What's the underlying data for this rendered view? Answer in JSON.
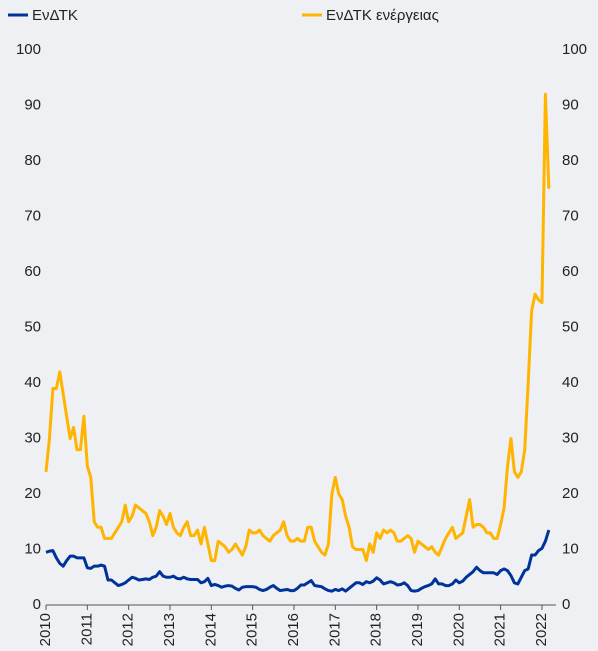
{
  "chart_data": {
    "type": "line",
    "categories": [
      "2010",
      null,
      null,
      null,
      null,
      null,
      null,
      null,
      null,
      null,
      null,
      null,
      "2011",
      null,
      null,
      null,
      null,
      null,
      null,
      null,
      null,
      null,
      null,
      null,
      "2012",
      null,
      null,
      null,
      null,
      null,
      null,
      null,
      null,
      null,
      null,
      null,
      "2013",
      null,
      null,
      null,
      null,
      null,
      null,
      null,
      null,
      null,
      null,
      null,
      "2014",
      null,
      null,
      null,
      null,
      null,
      null,
      null,
      null,
      null,
      null,
      null,
      "2015",
      null,
      null,
      null,
      null,
      null,
      null,
      null,
      null,
      null,
      null,
      null,
      "2016",
      null,
      null,
      null,
      null,
      null,
      null,
      null,
      null,
      null,
      null,
      null,
      "2017",
      null,
      null,
      null,
      null,
      null,
      null,
      null,
      null,
      null,
      null,
      null,
      "2018",
      null,
      null,
      null,
      null,
      null,
      null,
      null,
      null,
      null,
      null,
      null,
      "2019",
      null,
      null,
      null,
      null,
      null,
      null,
      null,
      null,
      null,
      null,
      null,
      "2020",
      null,
      null,
      null,
      null,
      null,
      null,
      null,
      null,
      null,
      null,
      null,
      "2021",
      null,
      null,
      null,
      null,
      null,
      null,
      null,
      null,
      null,
      null,
      null,
      "2022",
      null,
      null
    ],
    "series": [
      {
        "name": "ΕνΔΤΚ",
        "color": "#003399",
        "values": [
          9.5,
          9.7,
          9.8,
          8.5,
          7.5,
          7,
          8,
          8.8,
          8.8,
          8.5,
          8.5,
          8.5,
          6.7,
          6.6,
          7,
          7,
          7.2,
          7,
          4.5,
          4.5,
          4,
          3.5,
          3.7,
          4,
          4.5,
          5,
          4.8,
          4.5,
          4.6,
          4.7,
          4.6,
          5,
          5.2,
          6,
          5.2,
          5,
          5,
          5.2,
          4.8,
          4.7,
          5,
          4.7,
          4.6,
          4.6,
          4.6,
          4,
          4.2,
          4.8,
          3.5,
          3.7,
          3.5,
          3.2,
          3.4,
          3.5,
          3.4,
          3,
          2.7,
          3.2,
          3.3,
          3.3,
          3.3,
          3.2,
          2.8,
          2.6,
          2.8,
          3.2,
          3.5,
          3,
          2.6,
          2.7,
          2.8,
          2.6,
          2.6,
          3,
          3.6,
          3.6,
          4,
          4.4,
          3.5,
          3.4,
          3.3,
          2.9,
          2.6,
          2.5,
          2.8,
          2.6,
          2.9,
          2.5,
          3,
          3.5,
          4,
          4,
          3.7,
          4.2,
          4,
          4.3,
          4.9,
          4.5,
          3.8,
          4,
          4.2,
          4,
          3.6,
          3.7,
          4,
          3.5,
          2.6,
          2.5,
          2.6,
          3,
          3.3,
          3.5,
          3.8,
          4.7,
          3.8,
          3.8,
          3.5,
          3.5,
          3.8,
          4.5,
          4,
          4.3,
          5,
          5.5,
          6,
          6.8,
          6.2,
          5.8,
          5.8,
          5.8,
          5.8,
          5.5,
          6.2,
          6.5,
          6.2,
          5.3,
          4,
          3.8,
          5,
          6.2,
          6.5,
          9,
          9,
          9.8,
          10.2,
          11.5,
          13.5
        ]
      },
      {
        "name": "ΕνΔΤΚ ενέργειας",
        "color": "#ffb400",
        "values": [
          24,
          30,
          39,
          39,
          42,
          38,
          34,
          30,
          32,
          28,
          28,
          34,
          25,
          23,
          15,
          14,
          14,
          12,
          12,
          12,
          13,
          14,
          15,
          18,
          15,
          16,
          18,
          17.5,
          17,
          16.5,
          15,
          12.5,
          14,
          17,
          16,
          14.5,
          16.5,
          14,
          13,
          12.5,
          14,
          15,
          12.5,
          12.5,
          13.5,
          11,
          14,
          11,
          8,
          8,
          11.5,
          11,
          10.5,
          9.5,
          10,
          11,
          10,
          9,
          10.5,
          13.5,
          13,
          13,
          13.5,
          12.5,
          12,
          11.5,
          12.5,
          13,
          13.5,
          15,
          12.5,
          11.5,
          11.5,
          12,
          11.5,
          11.5,
          14,
          14,
          11.5,
          10.5,
          9.5,
          9,
          11,
          20,
          23,
          20,
          19,
          16,
          14,
          10.5,
          10,
          10,
          10,
          8,
          11,
          9.5,
          13,
          12,
          13.5,
          13,
          13.5,
          13,
          11.5,
          11.5,
          12,
          12.5,
          12,
          9.5,
          11.5,
          11,
          10.5,
          10,
          10.5,
          9.5,
          9,
          10.5,
          12,
          13,
          14,
          12,
          12.5,
          13,
          16,
          19,
          14,
          14.5,
          14.5,
          14,
          13,
          13,
          12,
          12,
          14.5,
          17.5,
          25,
          30,
          24,
          23,
          24,
          28,
          40,
          53,
          56,
          55,
          54.5,
          92,
          75
        ]
      }
    ],
    "ylim": [
      0,
      100
    ],
    "yticks": [
      0,
      10,
      20,
      30,
      40,
      50,
      60,
      70,
      80,
      90,
      100
    ],
    "y2lim": [
      0,
      100
    ],
    "y2ticks": [
      0,
      10,
      20,
      30,
      40,
      50,
      60,
      70,
      80,
      90,
      100
    ]
  }
}
